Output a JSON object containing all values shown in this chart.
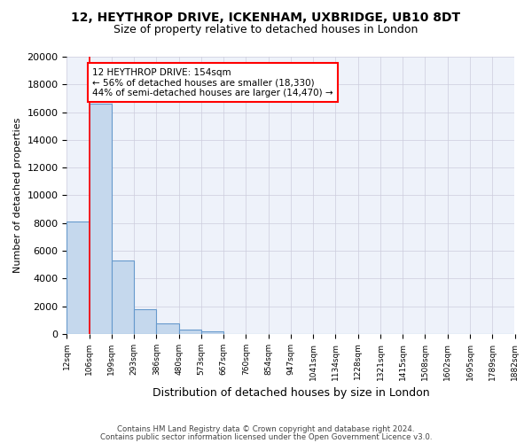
{
  "title_line1": "12, HEYTHROP DRIVE, ICKENHAM, UXBRIDGE, UB10 8DT",
  "title_line2": "Size of property relative to detached houses in London",
  "xlabel": "Distribution of detached houses by size in London",
  "ylabel": "Number of detached properties",
  "bin_labels": [
    "12sqm",
    "106sqm",
    "199sqm",
    "293sqm",
    "386sqm",
    "480sqm",
    "573sqm",
    "667sqm",
    "760sqm",
    "854sqm",
    "947sqm",
    "1041sqm",
    "1134sqm",
    "1228sqm",
    "1321sqm",
    "1415sqm",
    "1508sqm",
    "1602sqm",
    "1695sqm",
    "1789sqm",
    "1882sqm"
  ],
  "bar_values": [
    8100,
    16600,
    5300,
    1800,
    750,
    300,
    200,
    0,
    0,
    0,
    0,
    0,
    0,
    0,
    0,
    0,
    0,
    0,
    0,
    0
  ],
  "bar_color": "#c5d8ed",
  "bar_edge_color": "#6699cc",
  "ylim": [
    0,
    20000
  ],
  "yticks": [
    0,
    2000,
    4000,
    6000,
    8000,
    10000,
    12000,
    14000,
    16000,
    18000,
    20000
  ],
  "annotation_line1": "12 HEYTHROP DRIVE: 154sqm",
  "annotation_line2": "← 56% of detached houses are smaller (18,330)",
  "annotation_line3": "44% of semi-detached houses are larger (14,470) →",
  "red_line_x": 1.0,
  "footnote1": "Contains HM Land Registry data © Crown copyright and database right 2024.",
  "footnote2": "Contains public sector information licensed under the Open Government Licence v3.0.",
  "grid_color": "#ccccdd",
  "background_color": "#eef2fa"
}
